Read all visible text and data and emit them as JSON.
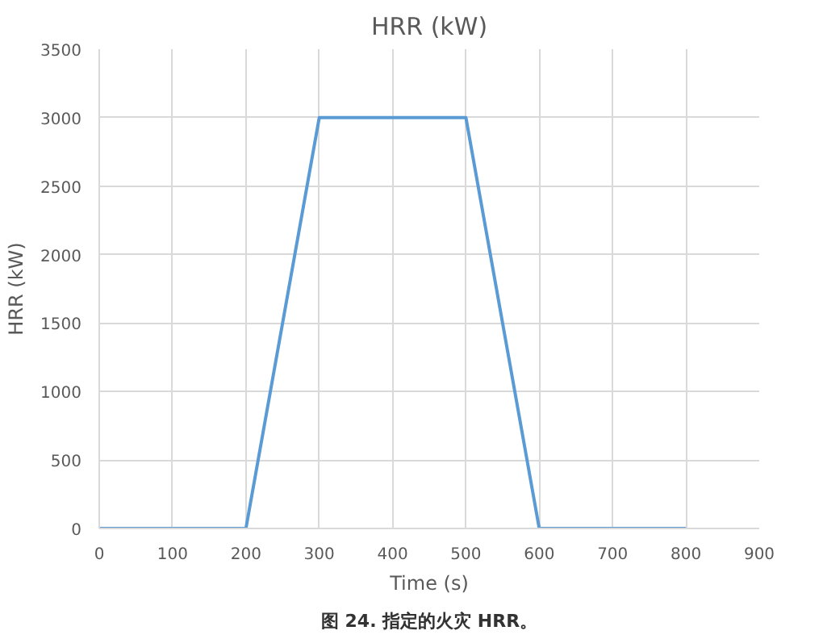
{
  "chart_data": {
    "type": "line",
    "title": "HRR (kW)",
    "xlabel": "Time (s)",
    "ylabel": "HRR (kW)",
    "x": [
      0,
      200,
      300,
      500,
      600,
      800
    ],
    "series": [
      {
        "color": "#5b9bd5",
        "values": [
          0,
          0,
          3000,
          3000,
          0,
          0
        ]
      }
    ],
    "xlim": [
      0,
      900
    ],
    "xticks": [
      0,
      100,
      200,
      300,
      400,
      500,
      600,
      700,
      800,
      900
    ],
    "ylim": [
      0,
      3500
    ],
    "yticks": [
      0,
      500,
      1000,
      1500,
      2000,
      2500,
      3000,
      3500
    ],
    "grid": true,
    "line_style": "solid",
    "marker": "none",
    "annotations": [
      "图 24. 指定的火灾 HRR。"
    ]
  }
}
